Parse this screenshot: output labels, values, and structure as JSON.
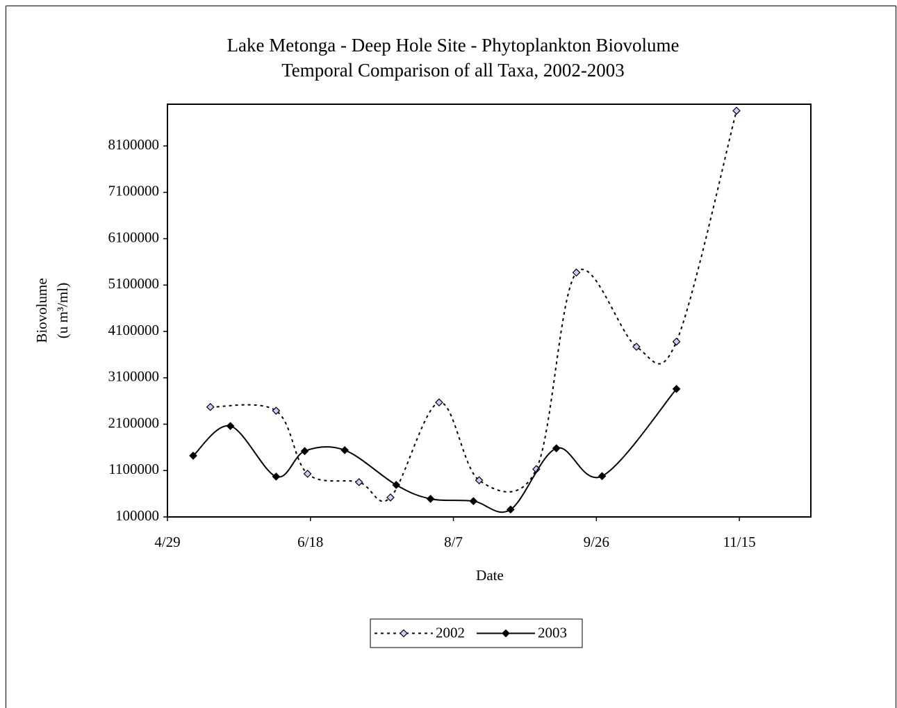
{
  "chart_data": {
    "type": "line",
    "title": [
      "Lake Metonga - Deep Hole Site - Phytoplankton Biovolume",
      "Temporal Comparison of all Taxa, 2002-2003"
    ],
    "xlabel": "Date",
    "ylabel": [
      "Biovolume",
      "(u m³/ml)"
    ],
    "smooth": true,
    "xlim": [
      119,
      344
    ],
    "xticks": [
      {
        "value": 119,
        "label": "4/29"
      },
      {
        "value": 169,
        "label": "6/18"
      },
      {
        "value": 219,
        "label": "8/7"
      },
      {
        "value": 269,
        "label": "9/26"
      },
      {
        "value": 319,
        "label": "11/15"
      }
    ],
    "ylim": [
      100000,
      9000000
    ],
    "yticks": [
      100000,
      1100000,
      2100000,
      3100000,
      4100000,
      5100000,
      6100000,
      7100000,
      8100000
    ],
    "legend": "bottom",
    "series": [
      {
        "name": "2002",
        "color": "#000000",
        "marker_fill": "#ccccff",
        "line_style": "dotted",
        "x": [
          134,
          157,
          168,
          186,
          197,
          214,
          228,
          248,
          262,
          283,
          297,
          318
        ],
        "values": [
          2470000,
          2390000,
          1030000,
          850000,
          520000,
          2570000,
          890000,
          1130000,
          5370000,
          3770000,
          3880000,
          8860000
        ]
      },
      {
        "name": "2003",
        "color": "#000000",
        "marker_fill": "#000000",
        "line_style": "solid",
        "x": [
          128,
          141,
          157,
          167,
          181,
          199,
          211,
          226,
          239,
          255,
          271,
          297
        ],
        "values": [
          1420000,
          2060000,
          970000,
          1520000,
          1540000,
          790000,
          490000,
          440000,
          260000,
          1580000,
          980000,
          2860000
        ]
      }
    ]
  }
}
